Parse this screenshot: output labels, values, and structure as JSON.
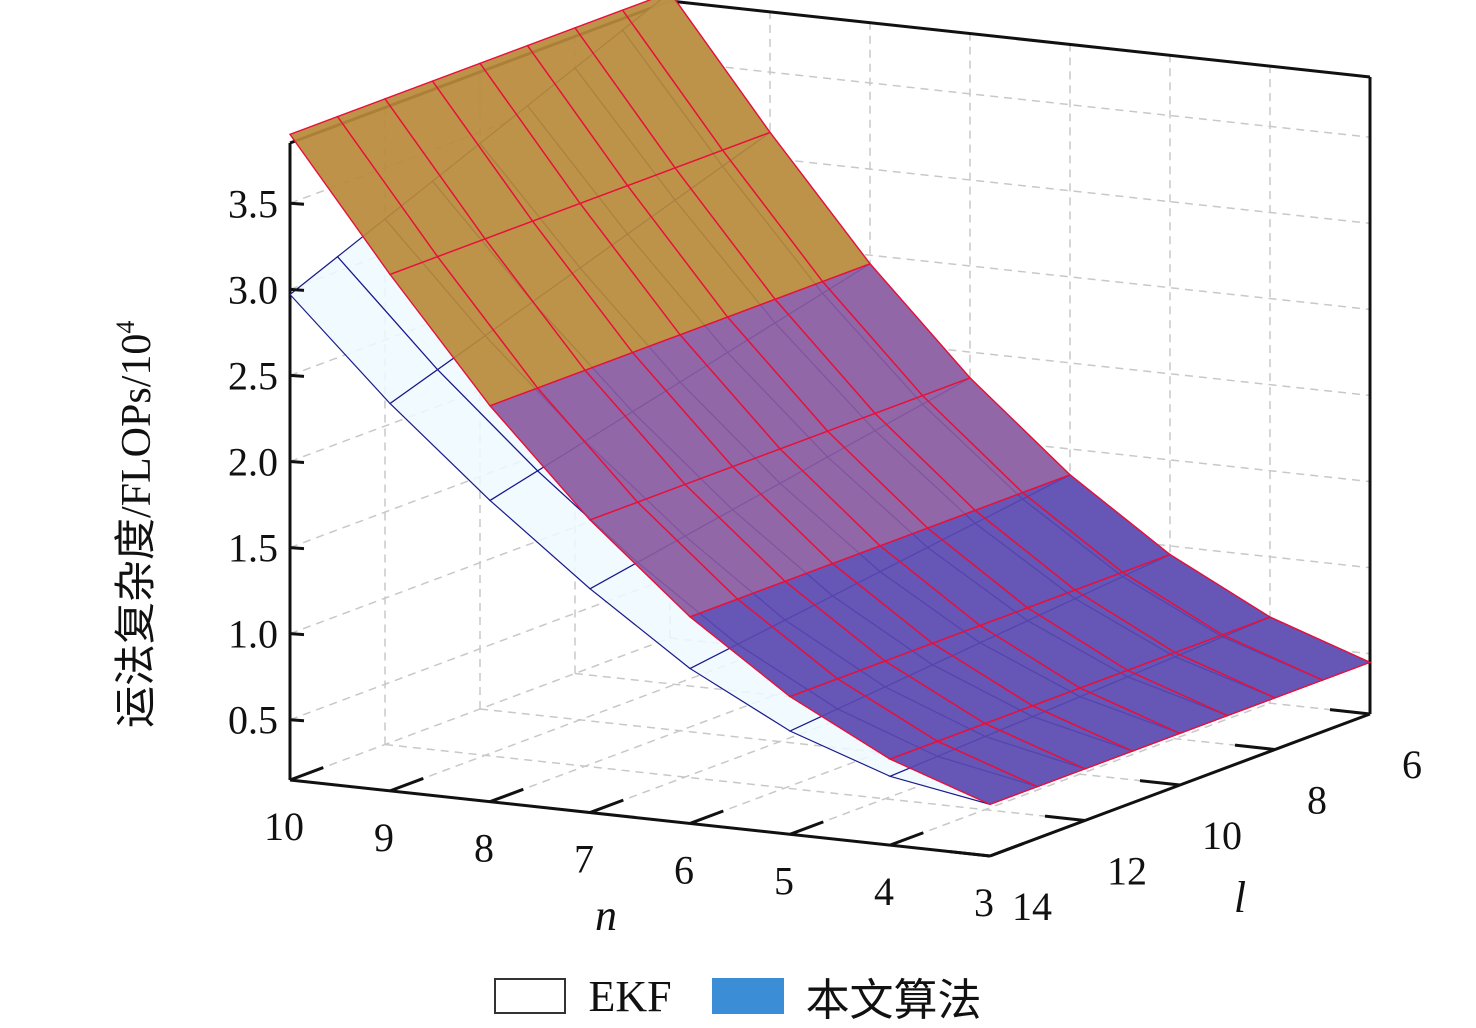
{
  "chart_data": {
    "type": "surface3d",
    "title": "",
    "xlabel": "n",
    "ylabel": "l",
    "zlabel": "运法复杂度/FLOPs/10",
    "zlabel_sup": "4",
    "x_ticks": [
      "10",
      "9",
      "8",
      "7",
      "6",
      "5",
      "4",
      "3"
    ],
    "y_ticks": [
      "14",
      "12",
      "10",
      "8",
      "6"
    ],
    "z_ticks": [
      "0.5",
      "1.0",
      "1.5",
      "2.0",
      "2.5",
      "3.0",
      "3.5"
    ],
    "xlim": [
      3,
      10
    ],
    "ylim": [
      6,
      14
    ],
    "zlim": [
      0.15,
      3.85
    ],
    "grid": true,
    "legend_position": "bottom",
    "n": [
      3,
      4,
      5,
      6,
      7,
      8,
      9,
      10
    ],
    "l": [
      6,
      7,
      8,
      9,
      10,
      11,
      12,
      13,
      14
    ],
    "series": [
      {
        "name": "EKF",
        "color": "#ffffff",
        "edge_color": "#1a1a8c",
        "z_at_l6": [
          0.45,
          0.65,
          0.95,
          1.35,
          1.85,
          2.45,
          3.15,
          3.9
        ],
        "z_at_l14": [
          0.45,
          0.55,
          0.75,
          1.05,
          1.45,
          1.9,
          2.4,
          2.97
        ]
      },
      {
        "name": "本文算法",
        "color": "#3b8ed6",
        "edge_color": "#e8103a",
        "z_at_l6": [
          0.45,
          0.65,
          0.95,
          1.35,
          1.85,
          2.45,
          3.15,
          3.9
        ],
        "z_at_l14": [
          0.45,
          0.65,
          0.95,
          1.35,
          1.85,
          2.45,
          3.15,
          3.9
        ]
      }
    ]
  }
}
